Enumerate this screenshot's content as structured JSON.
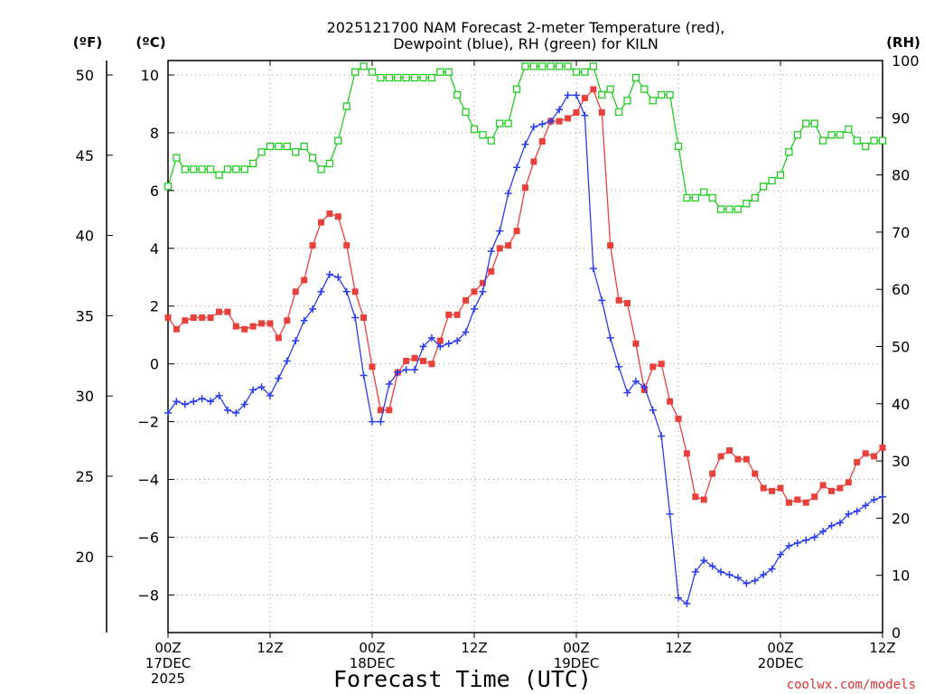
{
  "chart_data": {
    "type": "line",
    "title": "2025121700 NAM Forecast 2-meter Temperature (red),",
    "subtitle": "Dewpoint (blue), RH (green) for KILN",
    "xlabel": "Forecast Time (UTC)",
    "credit": "coolwx.com/models",
    "x_units": "forecast hour",
    "xlim": [
      0,
      84
    ],
    "x_ticks": [
      {
        "x": 0,
        "lines": [
          "00Z",
          "17DEC",
          "2025"
        ]
      },
      {
        "x": 12,
        "lines": [
          "12Z"
        ]
      },
      {
        "x": 24,
        "lines": [
          "00Z",
          "18DEC"
        ]
      },
      {
        "x": 36,
        "lines": [
          "12Z"
        ]
      },
      {
        "x": 48,
        "lines": [
          "00Z",
          "19DEC"
        ]
      },
      {
        "x": 60,
        "lines": [
          "12Z"
        ]
      },
      {
        "x": 72,
        "lines": [
          "00Z",
          "20DEC"
        ]
      },
      {
        "x": 84,
        "lines": [
          "12Z"
        ]
      }
    ],
    "axes": {
      "celsius": {
        "label": "(ºC)",
        "ylim": [
          -9.3,
          10.5
        ],
        "ticks": [
          -8,
          -6,
          -4,
          -2,
          0,
          2,
          4,
          6,
          8,
          10
        ],
        "grid": true
      },
      "fahrenheit": {
        "label": "(ºF)",
        "ticks": [
          20,
          25,
          30,
          35,
          40,
          45,
          50
        ]
      },
      "rh": {
        "label": "(RH)",
        "ylim": [
          0,
          100
        ],
        "ticks": [
          0,
          10,
          20,
          30,
          40,
          50,
          60,
          70,
          80,
          90,
          100
        ]
      }
    },
    "series": [
      {
        "key": "temperature",
        "axis": "celsius",
        "color": "#e8413c",
        "marker": "filled-square",
        "x": [
          0,
          1,
          2,
          3,
          4,
          5,
          6,
          7,
          8,
          9,
          10,
          11,
          12,
          13,
          14,
          15,
          16,
          17,
          18,
          19,
          20,
          21,
          22,
          23,
          24,
          25,
          26,
          27,
          28,
          29,
          30,
          31,
          32,
          33,
          34,
          35,
          36,
          37,
          38,
          39,
          40,
          41,
          42,
          43,
          44,
          45,
          46,
          47,
          48,
          49,
          50,
          51,
          52,
          53,
          54,
          55,
          56,
          57,
          58,
          59,
          60,
          61,
          62,
          63,
          64,
          65,
          66,
          67,
          68,
          69,
          70,
          71,
          72,
          73,
          74,
          75,
          76,
          77,
          78,
          79,
          80,
          81,
          82,
          83,
          84
        ],
        "values": [
          1.6,
          1.2,
          1.5,
          1.6,
          1.6,
          1.6,
          1.8,
          1.8,
          1.3,
          1.2,
          1.3,
          1.4,
          1.4,
          0.9,
          1.5,
          2.5,
          2.9,
          4.1,
          4.9,
          5.2,
          5.1,
          4.1,
          2.5,
          1.6,
          -0.1,
          -1.6,
          -1.6,
          -0.3,
          0.1,
          0.2,
          0.1,
          0.0,
          0.8,
          1.7,
          1.7,
          2.2,
          2.5,
          2.8,
          3.2,
          4.0,
          4.1,
          4.6,
          6.1,
          7.0,
          7.7,
          8.4,
          8.4,
          8.5,
          8.7,
          9.2,
          9.5,
          8.7,
          4.1,
          2.2,
          2.1,
          0.7,
          -0.9,
          -0.1,
          0.0,
          -1.3,
          -1.9,
          -3.1,
          -4.6,
          -4.7,
          -3.8,
          -3.2,
          -3.0,
          -3.3,
          -3.3,
          -3.8,
          -4.3,
          -4.4,
          -4.3,
          -4.8,
          -4.7,
          -4.8,
          -4.6,
          -4.2,
          -4.4,
          -4.3,
          -4.1,
          -3.4,
          -3.1,
          -3.2,
          -2.9
        ]
      },
      {
        "key": "dewpoint",
        "axis": "celsius",
        "color": "#2a3cf0",
        "marker": "plus",
        "x": [
          0,
          1,
          2,
          3,
          4,
          5,
          6,
          7,
          8,
          9,
          10,
          11,
          12,
          13,
          14,
          15,
          16,
          17,
          18,
          19,
          20,
          21,
          22,
          23,
          24,
          25,
          26,
          27,
          28,
          29,
          30,
          31,
          32,
          33,
          34,
          35,
          36,
          37,
          38,
          39,
          40,
          41,
          42,
          43,
          44,
          45,
          46,
          47,
          48,
          49,
          50,
          51,
          52,
          53,
          54,
          55,
          56,
          57,
          58,
          59,
          60,
          61,
          62,
          63,
          64,
          65,
          66,
          67,
          68,
          69,
          70,
          71,
          72,
          73,
          74,
          75,
          76,
          77,
          78,
          79,
          80,
          81,
          82,
          83,
          84
        ],
        "values": [
          -1.7,
          -1.3,
          -1.4,
          -1.3,
          -1.2,
          -1.3,
          -1.1,
          -1.6,
          -1.7,
          -1.4,
          -0.9,
          -0.8,
          -1.1,
          -0.5,
          0.1,
          0.8,
          1.5,
          1.9,
          2.5,
          3.1,
          3.0,
          2.5,
          1.6,
          -0.4,
          -2.0,
          -2.0,
          -0.7,
          -0.3,
          -0.2,
          -0.2,
          0.6,
          0.9,
          0.6,
          0.7,
          0.8,
          1.1,
          1.9,
          2.5,
          3.9,
          4.6,
          5.9,
          6.8,
          7.6,
          8.2,
          8.3,
          8.4,
          8.8,
          9.3,
          9.3,
          8.6,
          3.3,
          2.2,
          0.9,
          -0.1,
          -1.0,
          -0.6,
          -0.8,
          -1.6,
          -2.5,
          -5.2,
          -8.1,
          -8.3,
          -7.2,
          -6.8,
          -7.0,
          -7.2,
          -7.3,
          -7.4,
          -7.6,
          -7.5,
          -7.3,
          -7.1,
          -6.6,
          -6.3,
          -6.2,
          -6.1,
          -6.0,
          -5.8,
          -5.6,
          -5.5,
          -5.2,
          -5.1,
          -4.9,
          -4.7,
          -4.6
        ]
      },
      {
        "key": "rh",
        "axis": "rh",
        "color": "#22cc22",
        "marker": "open-square",
        "x": [
          0,
          1,
          2,
          3,
          4,
          5,
          6,
          7,
          8,
          9,
          10,
          11,
          12,
          13,
          14,
          15,
          16,
          17,
          18,
          19,
          20,
          21,
          22,
          23,
          24,
          25,
          26,
          27,
          28,
          29,
          30,
          31,
          32,
          33,
          34,
          35,
          36,
          37,
          38,
          39,
          40,
          41,
          42,
          43,
          44,
          45,
          46,
          47,
          48,
          49,
          50,
          51,
          52,
          53,
          54,
          55,
          56,
          57,
          58,
          59,
          60,
          61,
          62,
          63,
          64,
          65,
          66,
          67,
          68,
          69,
          70,
          71,
          72,
          73,
          74,
          75,
          76,
          77,
          78,
          79,
          80,
          81,
          82,
          83,
          84
        ],
        "values": [
          78,
          83,
          81,
          81,
          81,
          81,
          80,
          81,
          81,
          81,
          82,
          84,
          85,
          85,
          85,
          84,
          85,
          83,
          81,
          82,
          86,
          92,
          98,
          99,
          98,
          97,
          97,
          97,
          97,
          97,
          97,
          97,
          98,
          98,
          94,
          91,
          88,
          87,
          86,
          89,
          89,
          95,
          99,
          99,
          99,
          99,
          99,
          99,
          98,
          98,
          99,
          94,
          95,
          91,
          93,
          97,
          95,
          93,
          94,
          94,
          85,
          76,
          76,
          77,
          76,
          74,
          74,
          74,
          75,
          76,
          78,
          79,
          80,
          84,
          87,
          89,
          89,
          86,
          87,
          87,
          88,
          86,
          85,
          86,
          86
        ]
      }
    ]
  }
}
